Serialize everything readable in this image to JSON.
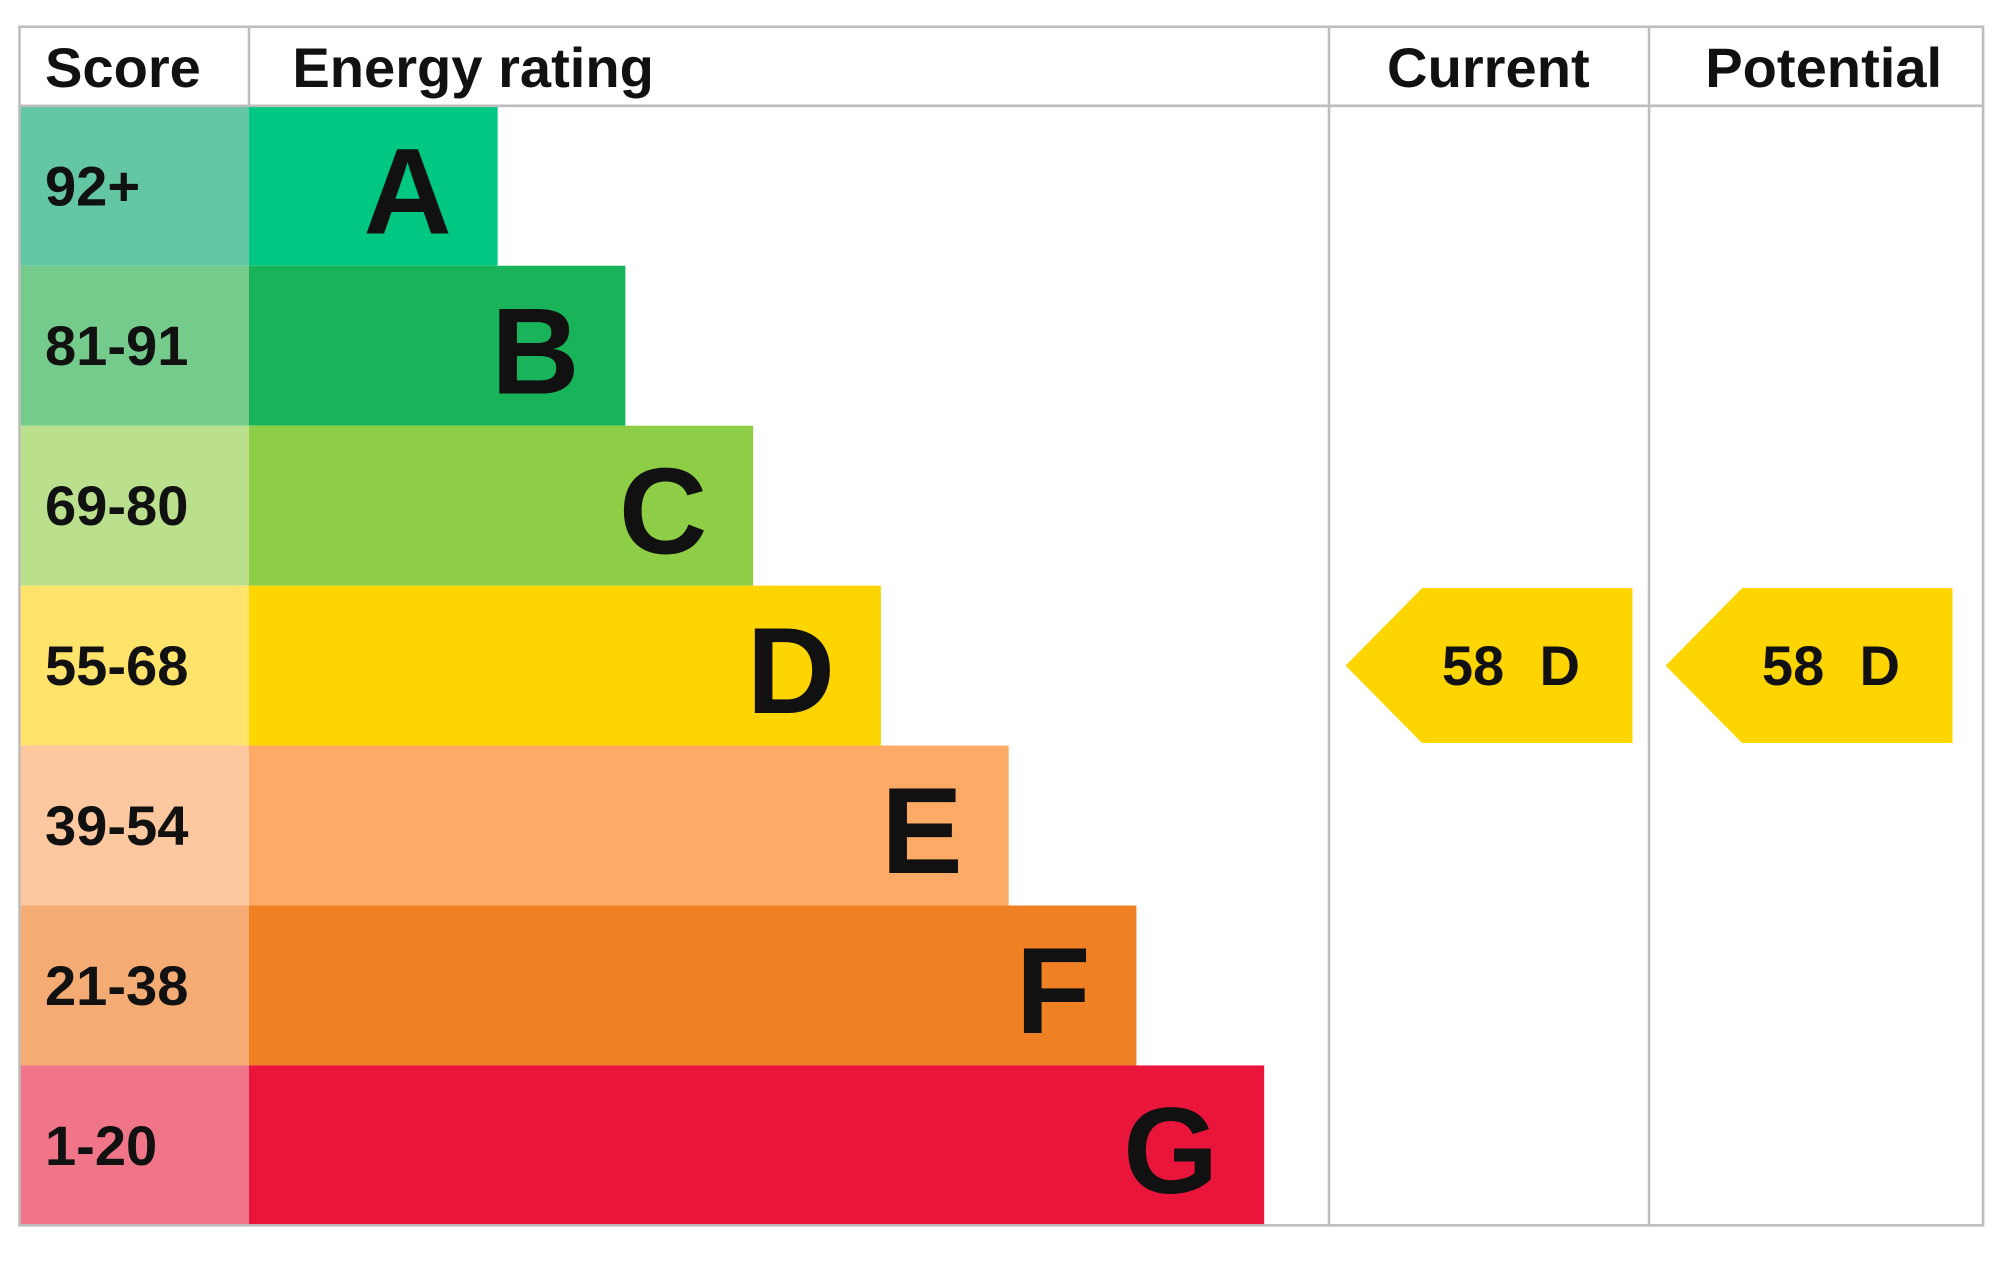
{
  "header": {
    "score": "Score",
    "rating": "Energy rating",
    "current": "Current",
    "potential": "Potential"
  },
  "rows": [
    {
      "score": "92+",
      "letter": "A",
      "color": "#00c781",
      "score_color": "#63c7a3"
    },
    {
      "score": "81-91",
      "letter": "B",
      "color": "#19b459",
      "score_color": "#74cb8c"
    },
    {
      "score": "69-80",
      "letter": "C",
      "color": "#8dce46",
      "score_color": "#bbe08d"
    },
    {
      "score": "55-68",
      "letter": "D",
      "color": "#ffd500",
      "score_color": "#ffe36a"
    },
    {
      "score": "39-54",
      "letter": "E",
      "color": "#fcaa65",
      "score_color": "#fdc8a0"
    },
    {
      "score": "21-38",
      "letter": "F",
      "color": "#ef8023",
      "score_color": "#f4ac74"
    },
    {
      "score": "1-20",
      "letter": "G",
      "color": "#e9153b",
      "score_color": "#f07589"
    }
  ],
  "current": {
    "score": "58",
    "rating": "D"
  },
  "potential": {
    "score": "58",
    "rating": "D"
  }
}
